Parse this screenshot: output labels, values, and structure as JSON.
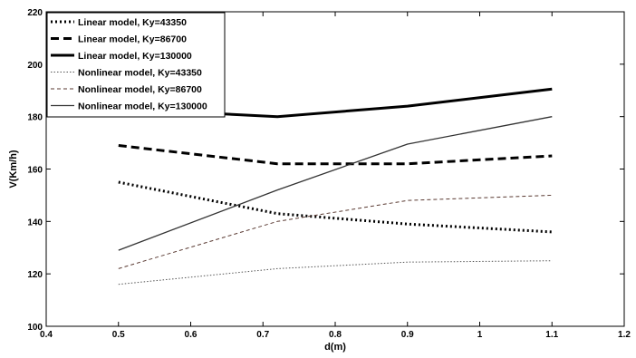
{
  "chart_data": {
    "type": "line",
    "title": "",
    "xlabel": "d(m)",
    "ylabel": "V(Km/h)",
    "xlim": [
      0.4,
      1.2
    ],
    "ylim": [
      100,
      220
    ],
    "x_ticks": [
      "0.4",
      "0.5",
      "0.6",
      "0.7",
      "0.8",
      "0.9",
      "1",
      "1.1",
      "1.2"
    ],
    "y_ticks": [
      "100",
      "120",
      "140",
      "160",
      "180",
      "200",
      "220"
    ],
    "grid": false,
    "legend_position": "top-left",
    "x": [
      0.5,
      0.72,
      0.9,
      1.1
    ],
    "series": [
      {
        "name": "Linear model, Ky=43350",
        "values": [
          155,
          143,
          139,
          136
        ],
        "style": "dotted-thick",
        "color": "#000000"
      },
      {
        "name": "Linear model, Ky=86700",
        "values": [
          169,
          162,
          162,
          165
        ],
        "style": "dashed-thick",
        "color": "#000000"
      },
      {
        "name": "Linear model, Ky=130000",
        "values": [
          183,
          180,
          184,
          190.5
        ],
        "style": "solid-thick",
        "color": "#000000"
      },
      {
        "name": "Nonlinear model, Ky=43350",
        "values": [
          116,
          122,
          124.5,
          125
        ],
        "style": "dotted-thin",
        "color": "#555555"
      },
      {
        "name": "Nonlinear model, Ky=86700",
        "values": [
          122,
          140,
          148,
          150
        ],
        "style": "dashed-thin",
        "color": "#5a3a32"
      },
      {
        "name": "Nonlinear model, Ky=130000",
        "values": [
          129,
          152,
          169.5,
          180
        ],
        "style": "solid-thin",
        "color": "#333333"
      }
    ]
  }
}
